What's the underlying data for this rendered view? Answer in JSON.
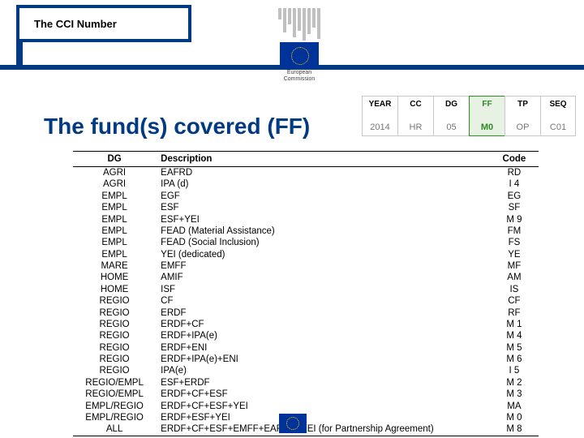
{
  "tab_title": "The CCI Number",
  "logo_caption_line1": "European",
  "logo_caption_line2": "Commission",
  "spec_columns": [
    {
      "label": "YEAR",
      "value": "2014",
      "highlight": false
    },
    {
      "label": "CC",
      "value": "HR",
      "highlight": false
    },
    {
      "label": "DG",
      "value": "05",
      "highlight": false
    },
    {
      "label": "FF",
      "value": "M0",
      "highlight": true
    },
    {
      "label": "TP",
      "value": "OP",
      "highlight": false
    },
    {
      "label": "SEQ",
      "value": "C01",
      "highlight": false
    }
  ],
  "main_title": "The fund(s) covered (FF)",
  "table": {
    "headers": [
      "DG",
      "Description",
      "Code"
    ],
    "rows": [
      [
        "AGRI",
        "EAFRD",
        "RD"
      ],
      [
        "AGRI",
        "IPA (d)",
        "I 4"
      ],
      [
        "EMPL",
        "EGF",
        "EG"
      ],
      [
        "EMPL",
        "ESF",
        "SF"
      ],
      [
        "EMPL",
        "ESF+YEI",
        "M 9"
      ],
      [
        "EMPL",
        "FEAD   (Material Assistance)",
        "FM"
      ],
      [
        "EMPL",
        "FEAD   (Social Inclusion)",
        "FS"
      ],
      [
        "EMPL",
        "YEI (dedicated)",
        "YE"
      ],
      [
        "MARE",
        "EMFF",
        "MF"
      ],
      [
        "HOME",
        "AMIF",
        "AM"
      ],
      [
        "HOME",
        "ISF",
        "IS"
      ],
      [
        "REGIO",
        "CF",
        "CF"
      ],
      [
        "REGIO",
        "ERDF",
        "RF"
      ],
      [
        "REGIO",
        "ERDF+CF",
        "M 1"
      ],
      [
        "REGIO",
        "ERDF+IPA(e)",
        "M 4"
      ],
      [
        "REGIO",
        "ERDF+ENI",
        "M 5"
      ],
      [
        "REGIO",
        "ERDF+IPA(e)+ENI",
        "M 6"
      ],
      [
        "REGIO",
        "IPA(e)",
        "I 5"
      ],
      [
        "REGIO/EMPL",
        "ESF+ERDF",
        "M 2"
      ],
      [
        "REGIO/EMPL",
        "ERDF+CF+ESF",
        "M 3"
      ],
      [
        "EMPL/REGIO",
        "ERDF+CF+ESF+YEI",
        "MA"
      ],
      [
        "EMPL/REGIO",
        "ERDF+ESF+YEI",
        "M 0"
      ],
      [
        "ALL",
        "ERDF+CF+ESF+EMFF+EAFRD+YEI (for Partnership Agreement)",
        "M 8"
      ]
    ]
  },
  "colors": {
    "brand_blue": "#003a82",
    "highlight_green": "#2e8b20",
    "highlight_bg": "#e8f2e4",
    "border_gray": "#c7c7c7",
    "eu_flag_blue": "#003399",
    "eu_flag_gold": "#ffcc00"
  }
}
